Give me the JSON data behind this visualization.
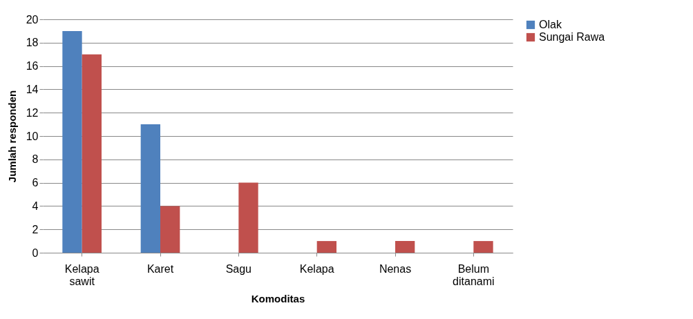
{
  "chart_data": {
    "type": "bar",
    "xlabel": "Komoditas",
    "ylabel": "Jumlah responden",
    "categories": [
      "Kelapa sawit",
      "Karet",
      "Sagu",
      "Kelapa",
      "Nenas",
      "Belum ditanami"
    ],
    "series": [
      {
        "name": "Olak",
        "color": "#4f81bd",
        "values": [
          19,
          11,
          0,
          0,
          0,
          0
        ]
      },
      {
        "name": "Sungai Rawa",
        "color": "#c0504d",
        "values": [
          17,
          4,
          6,
          1,
          1,
          1
        ]
      }
    ],
    "ylim": [
      0,
      20
    ],
    "yticks": [
      0,
      2,
      4,
      6,
      8,
      10,
      12,
      14,
      16,
      18,
      20
    ],
    "grid": "y",
    "legend": "right"
  }
}
